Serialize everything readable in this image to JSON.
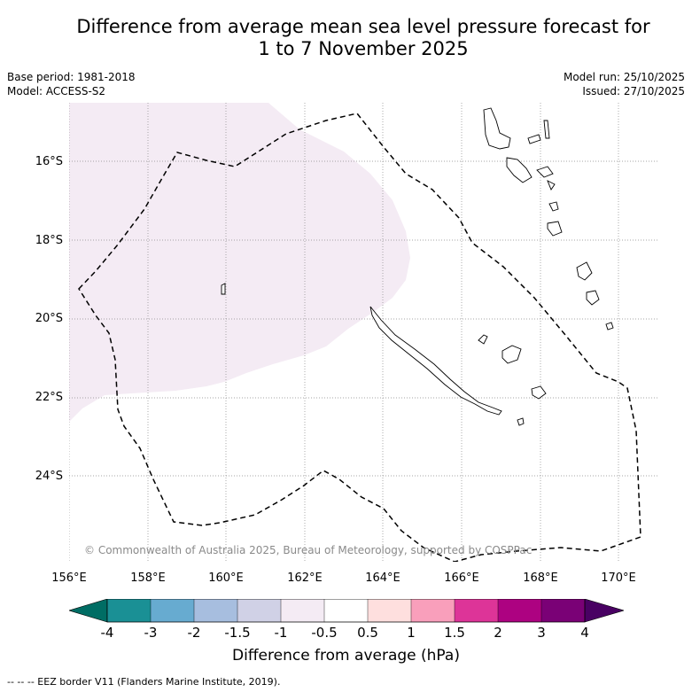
{
  "header": {
    "title_line1": "Difference from average mean sea level pressure forecast for",
    "title_line2": "1 to 7 November 2025",
    "base_period": "Base period: 1981-2018",
    "model": "Model: ACCESS-S2",
    "model_run": "Model run: 25/10/2025",
    "issued": "Issued: 27/10/2025"
  },
  "map": {
    "lat_labels": [
      "16°S",
      "18°S",
      "20°S",
      "22°S",
      "24°S"
    ],
    "lon_labels": [
      "156°E",
      "158°E",
      "160°E",
      "162°E",
      "164°E",
      "166°E",
      "168°E",
      "170°E"
    ],
    "copyright": "© Commonwealth of Australia 2025, Bureau of Meteorology, supported by COSPPac",
    "anomaly_region": "-1 to -0.5",
    "anomaly_color": "#f4ebf4"
  },
  "colorbar": {
    "ticks": [
      "-4",
      "-3",
      "-2",
      "-1.5",
      "-1",
      "-0.5",
      "0.5",
      "1",
      "1.5",
      "2",
      "3",
      "4"
    ],
    "colors": [
      "#1a9095",
      "#67abd0",
      "#a7bedf",
      "#d0d1e6",
      "#f4ebf4",
      "#ffffff",
      "#fedfde",
      "#f99fbb",
      "#dd3498",
      "#ad0281",
      "#7a0176"
    ],
    "under_color": "#006d64",
    "over_color": "#490163",
    "label": "Difference from average (hPa)"
  },
  "legend": {
    "eez_note": "--  --  -- EEZ border V11 (Flanders Marine Institute, 2019)."
  }
}
